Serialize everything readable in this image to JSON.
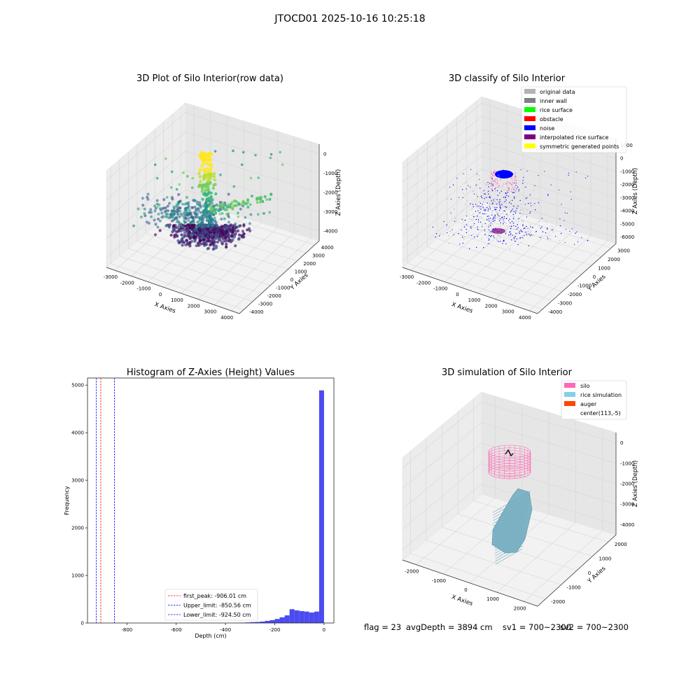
{
  "figure": {
    "suptitle": "JTOCD01 2025-10-16 10:25:18",
    "status": {
      "flag": "flag = 23",
      "avg_depth": "avgDepth = 3894 cm",
      "sv1": "sv1 = 700~2300",
      "sv2": "sv2 = 700~2300"
    }
  },
  "colors": {
    "original": "#b3b3b3",
    "inner_wall": "#808080",
    "rice_surface": "#00ff00",
    "obstacle": "#ff0000",
    "noise": "#0000ff",
    "interp_surface": "#800080",
    "symmetric": "#ffff00",
    "silo": "#ff69b4",
    "rice_sim": "#87ceeb",
    "auger": "#ff4500",
    "hist_bar": "#4b4bf0",
    "pane": "#f2f2f2",
    "grid": "#d6d6d6"
  },
  "chart_data": [
    {
      "id": "raw",
      "type": "scatter",
      "title": "3D Plot of Silo Interior(row data)",
      "xlabel": "X Axies",
      "ylabel": "Y Axies",
      "zlabel": "Z Axies (Depth)",
      "x_ticks": [
        "-3000",
        "-2000",
        "-1000",
        "0",
        "1000",
        "2000",
        "3000",
        "4000"
      ],
      "y_ticks": [
        "-4000",
        "-3000",
        "-2000",
        "-1000",
        "0",
        "1000",
        "2000",
        "3000",
        "4000"
      ],
      "z_ticks": [
        "-4000",
        "-3000",
        "-2000",
        "-1000",
        "0"
      ],
      "colormap": "viridis"
    },
    {
      "id": "classify",
      "type": "scatter",
      "title": "3D classify of Silo Interior",
      "xlabel": "X Axies",
      "ylabel": "Y Axies",
      "zlabel": "Z Axies (Depth)",
      "x_ticks": [
        "-3000",
        "-2000",
        "-1000",
        "0",
        "1000",
        "2000",
        "3000",
        "4000"
      ],
      "y_ticks": [
        "-4000",
        "-3000",
        "-2000",
        "-1000",
        "0",
        "1000",
        "2000",
        "3000"
      ],
      "z_ticks": [
        "-6000",
        "-5000",
        "-4000",
        "-3000",
        "-2000",
        "-1000",
        "0",
        "1000"
      ],
      "legend_placement": "upper-right",
      "legend": [
        {
          "label": "original data",
          "color": "#b3b3b3"
        },
        {
          "label": "inner wall",
          "color": "#808080"
        },
        {
          "label": "rice surface",
          "color": "#00ff00"
        },
        {
          "label": "obstacle",
          "color": "#ff0000"
        },
        {
          "label": "noise",
          "color": "#0000ff"
        },
        {
          "label": "interpolated rice surface",
          "color": "#800080"
        },
        {
          "label": "symmetric generated points",
          "color": "#ffff00"
        }
      ]
    },
    {
      "id": "hist",
      "type": "bar",
      "title": "Histogram of Z-Axies (Height) Values",
      "xlabel": "Depth (cm)",
      "ylabel": "Frequency",
      "xlim": [
        -960,
        40
      ],
      "ylim": [
        0,
        5150
      ],
      "x_ticks": [
        -800,
        -600,
        -400,
        -200,
        0
      ],
      "y_ticks": [
        0,
        1000,
        2000,
        3000,
        4000,
        5000
      ],
      "bin_width": 20,
      "bins": [
        {
          "start": -360,
          "count": 5
        },
        {
          "start": -340,
          "count": 8
        },
        {
          "start": -320,
          "count": 12
        },
        {
          "start": -300,
          "count": 18
        },
        {
          "start": -280,
          "count": 22
        },
        {
          "start": -260,
          "count": 30
        },
        {
          "start": -240,
          "count": 45
        },
        {
          "start": -220,
          "count": 60
        },
        {
          "start": -200,
          "count": 85
        },
        {
          "start": -180,
          "count": 120
        },
        {
          "start": -160,
          "count": 160
        },
        {
          "start": -140,
          "count": 290
        },
        {
          "start": -120,
          "count": 265
        },
        {
          "start": -100,
          "count": 250
        },
        {
          "start": -80,
          "count": 240
        },
        {
          "start": -60,
          "count": 220
        },
        {
          "start": -40,
          "count": 240
        },
        {
          "start": -20,
          "count": 4890
        }
      ],
      "vlines": [
        {
          "label": "first_peak: -906.01 cm",
          "x": -906.01,
          "color": "#ff0000"
        },
        {
          "label": "Upper_limit: -850.56 cm",
          "x": -850.56,
          "color": "#0000ff"
        },
        {
          "label": "Lower_limit: -924.50 cm",
          "x": -924.5,
          "color": "#0000ff"
        }
      ],
      "legend_placement": "lower-center"
    },
    {
      "id": "sim",
      "type": "scatter",
      "title": "3D simulation of Silo Interior",
      "xlabel": "X Axies",
      "ylabel": "Y Axies",
      "zlabel": "Z Axies (Depth)",
      "x_ticks": [
        "-2000",
        "-1000",
        "0",
        "1000",
        "2000"
      ],
      "y_ticks": [
        "-2000",
        "-1000",
        "0",
        "1000",
        "2000"
      ],
      "z_ticks": [
        "-4000",
        "-3000",
        "-2000",
        "-1000",
        "0"
      ],
      "legend_placement": "upper-right",
      "legend": [
        {
          "label": "silo",
          "color": "#ff69b4"
        },
        {
          "label": "rice simulation",
          "color": "#87ceeb"
        },
        {
          "label": "auger",
          "color": "#ff4500"
        },
        {
          "label": "center(113,-5)",
          "color": "#ffffff"
        }
      ]
    }
  ]
}
